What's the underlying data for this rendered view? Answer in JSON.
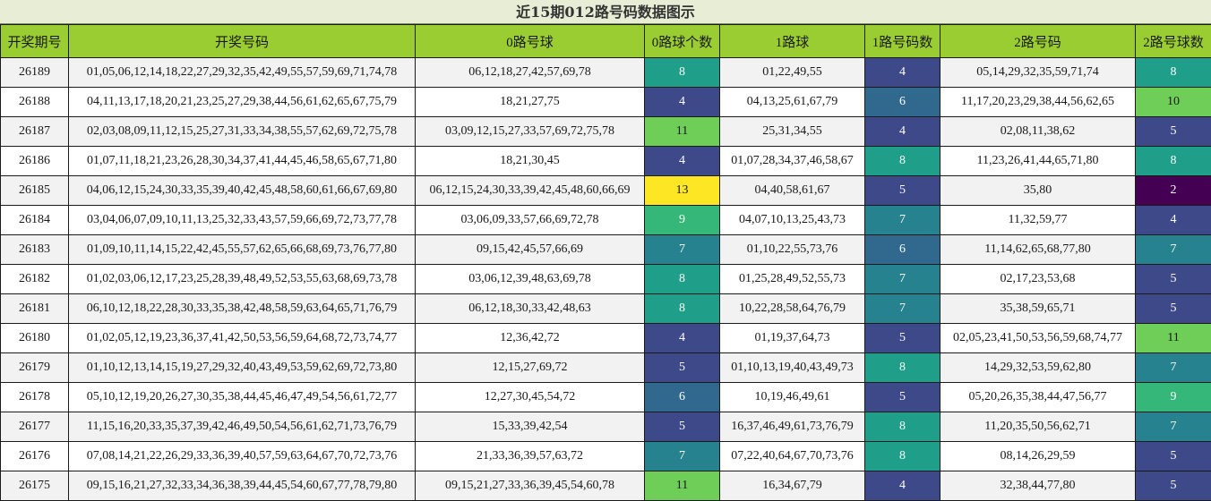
{
  "title": "近15期012路号码数据图示",
  "colors": {
    "header_bg": "#9acd32",
    "title_bg": "#e8edd6",
    "count_scale": [
      "#440154",
      "#482878",
      "#3e4989",
      "#31688e",
      "#26828e",
      "#1f9e89",
      "#35b779",
      "#6ece58",
      "#b5de2b",
      "#fde725"
    ]
  },
  "chart_data": {
    "type": "table",
    "title": "近15期012路号码数据图示",
    "columns": [
      "开奖期号",
      "开奖号码",
      "0路号球",
      "0路球个数",
      "1路球",
      "1路号码数",
      "2路号码",
      "2路号球数"
    ],
    "color_scale": "viridis",
    "rows": [
      {
        "issue": "26189",
        "numbers": "01,05,06,12,14,18,22,27,29,32,35,42,49,55,57,59,69,71,74,78",
        "r0": "06,12,18,27,42,57,69,78",
        "c0": 8,
        "r1": "01,22,49,55",
        "c1": 4,
        "r2": "05,14,29,32,35,59,71,74",
        "c2": 8
      },
      {
        "issue": "26188",
        "numbers": "04,11,13,17,18,20,21,23,25,27,29,38,44,56,61,62,65,67,75,79",
        "r0": "18,21,27,75",
        "c0": 4,
        "r1": "04,13,25,61,67,79",
        "c1": 6,
        "r2": "11,17,20,23,29,38,44,56,62,65",
        "c2": 10
      },
      {
        "issue": "26187",
        "numbers": "02,03,08,09,11,12,15,25,27,31,33,34,38,55,57,62,69,72,75,78",
        "r0": "03,09,12,15,27,33,57,69,72,75,78",
        "c0": 11,
        "r1": "25,31,34,55",
        "c1": 4,
        "r2": "02,08,11,38,62",
        "c2": 5
      },
      {
        "issue": "26186",
        "numbers": "01,07,11,18,21,23,26,28,30,34,37,41,44,45,46,58,65,67,71,80",
        "r0": "18,21,30,45",
        "c0": 4,
        "r1": "01,07,28,34,37,46,58,67",
        "c1": 8,
        "r2": "11,23,26,41,44,65,71,80",
        "c2": 8
      },
      {
        "issue": "26185",
        "numbers": "04,06,12,15,24,30,33,35,39,40,42,45,48,58,60,61,66,67,69,80",
        "r0": "06,12,15,24,30,33,39,42,45,48,60,66,69",
        "c0": 13,
        "r1": "04,40,58,61,67",
        "c1": 5,
        "r2": "35,80",
        "c2": 2
      },
      {
        "issue": "26184",
        "numbers": "03,04,06,07,09,10,11,13,25,32,33,43,57,59,66,69,72,73,77,78",
        "r0": "03,06,09,33,57,66,69,72,78",
        "c0": 9,
        "r1": "04,07,10,13,25,43,73",
        "c1": 7,
        "r2": "11,32,59,77",
        "c2": 4
      },
      {
        "issue": "26183",
        "numbers": "01,09,10,11,14,15,22,42,45,55,57,62,65,66,68,69,73,76,77,80",
        "r0": "09,15,42,45,57,66,69",
        "c0": 7,
        "r1": "01,10,22,55,73,76",
        "c1": 6,
        "r2": "11,14,62,65,68,77,80",
        "c2": 7
      },
      {
        "issue": "26182",
        "numbers": "01,02,03,06,12,17,23,25,28,39,48,49,52,53,55,63,68,69,73,78",
        "r0": "03,06,12,39,48,63,69,78",
        "c0": 8,
        "r1": "01,25,28,49,52,55,73",
        "c1": 7,
        "r2": "02,17,23,53,68",
        "c2": 5
      },
      {
        "issue": "26181",
        "numbers": "06,10,12,18,22,28,30,33,35,38,42,48,58,59,63,64,65,71,76,79",
        "r0": "06,12,18,30,33,42,48,63",
        "c0": 8,
        "r1": "10,22,28,58,64,76,79",
        "c1": 7,
        "r2": "35,38,59,65,71",
        "c2": 5
      },
      {
        "issue": "26180",
        "numbers": "01,02,05,12,19,23,36,37,41,42,50,53,56,59,64,68,72,73,74,77",
        "r0": "12,36,42,72",
        "c0": 4,
        "r1": "01,19,37,64,73",
        "c1": 5,
        "r2": "02,05,23,41,50,53,56,59,68,74,77",
        "c2": 11
      },
      {
        "issue": "26179",
        "numbers": "01,10,12,13,14,15,19,27,29,32,40,43,49,53,59,62,69,72,73,80",
        "r0": "12,15,27,69,72",
        "c0": 5,
        "r1": "01,10,13,19,40,43,49,73",
        "c1": 8,
        "r2": "14,29,32,53,59,62,80",
        "c2": 7
      },
      {
        "issue": "26178",
        "numbers": "05,10,12,19,20,26,27,30,35,38,44,45,46,47,49,54,56,61,72,77",
        "r0": "12,27,30,45,54,72",
        "c0": 6,
        "r1": "10,19,46,49,61",
        "c1": 5,
        "r2": "05,20,26,35,38,44,47,56,77",
        "c2": 9
      },
      {
        "issue": "26177",
        "numbers": "11,15,16,20,33,35,37,39,42,46,49,50,54,56,61,62,71,73,76,79",
        "r0": "15,33,39,42,54",
        "c0": 5,
        "r1": "16,37,46,49,61,73,76,79",
        "c1": 8,
        "r2": "11,20,35,50,56,62,71",
        "c2": 7
      },
      {
        "issue": "26176",
        "numbers": "07,08,14,21,22,26,29,33,36,39,40,57,59,63,64,67,70,72,73,76",
        "r0": "21,33,36,39,57,63,72",
        "c0": 7,
        "r1": "07,22,40,64,67,70,73,76",
        "c1": 8,
        "r2": "08,14,26,29,59",
        "c2": 5
      },
      {
        "issue": "26175",
        "numbers": "09,15,16,21,27,32,33,34,36,38,39,44,45,54,60,67,77,78,79,80",
        "r0": "09,15,21,27,33,36,39,45,54,60,78",
        "c0": 11,
        "r1": "16,34,67,79",
        "c1": 4,
        "r2": "32,38,44,77,80",
        "c2": 5
      }
    ]
  }
}
